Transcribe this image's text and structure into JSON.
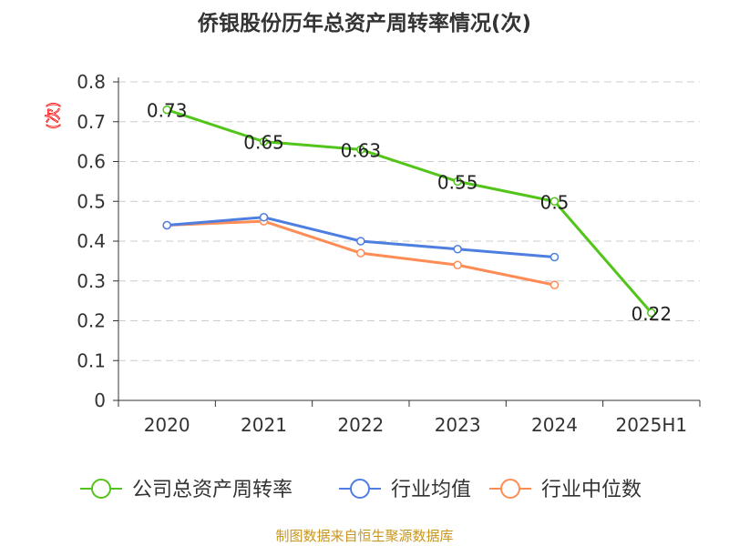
{
  "chart_data": {
    "type": "line",
    "title": "侨银股份历年总资产周转率情况(次)",
    "ylabel": "(次)",
    "categories": [
      "2020",
      "2021",
      "2022",
      "2023",
      "2024",
      "2025H1"
    ],
    "ylim": [
      0,
      0.8
    ],
    "yticks": [
      "0",
      "0.1",
      "0.2",
      "0.3",
      "0.4",
      "0.5",
      "0.6",
      "0.7",
      "0.8"
    ],
    "grid": true,
    "legend_position": "bottom",
    "series": [
      {
        "name": "公司总资产周转率",
        "color": "#52c41a",
        "values": [
          0.73,
          0.65,
          0.63,
          0.55,
          0.5,
          0.22
        ],
        "labels": [
          "0.73",
          "0.65",
          "0.63",
          "0.55",
          "0.5",
          "0.22"
        ]
      },
      {
        "name": "行业均值",
        "color": "#4e7fe0",
        "values": [
          0.44,
          0.46,
          0.4,
          0.38,
          0.36,
          null
        ]
      },
      {
        "name": "行业中位数",
        "color": "#ff8c55",
        "values": [
          0.44,
          0.45,
          0.37,
          0.34,
          0.29,
          null
        ]
      }
    ]
  },
  "source": "制图数据来自恒生聚源数据库"
}
